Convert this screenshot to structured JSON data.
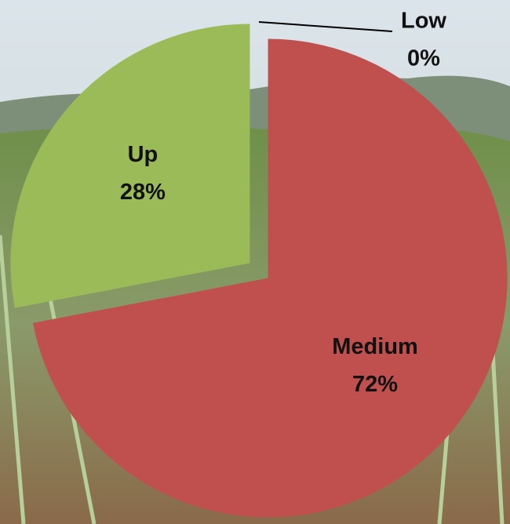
{
  "chart_data": {
    "type": "pie",
    "categories": [
      "Low",
      "Medium",
      "Up"
    ],
    "values": [
      0,
      72,
      28
    ],
    "value_labels": [
      "0%",
      "72%",
      "28%"
    ],
    "colors": [
      "#4f81bd",
      "#c0504d",
      "#9bbb59"
    ]
  }
}
